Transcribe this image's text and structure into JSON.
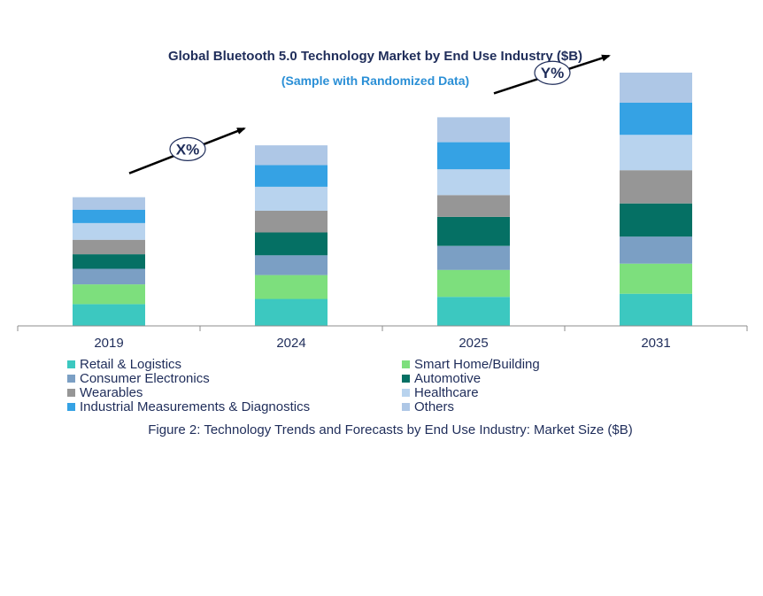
{
  "chart_data": {
    "type": "bar",
    "stacked": true,
    "title": "Global Bluetooth 5.0 Technology Market by End Use Industry ($B)",
    "subtitle": "(Sample with Randomized Data)",
    "caption": "Figure 2: Technology  Trends  and Forecasts by End Use Industry:  Market Size ($B)",
    "xlabel": "",
    "ylabel": "",
    "categories": [
      "2019",
      "2024",
      "2025",
      "2031"
    ],
    "series": [
      {
        "name": "Retail & Logistics",
        "color": "#3cc8c0",
        "values": [
          2.1,
          2.6,
          2.8,
          3.1
        ]
      },
      {
        "name": "Smart Home/Building",
        "color": "#7ddf7d",
        "values": [
          1.9,
          2.3,
          2.6,
          2.9
        ]
      },
      {
        "name": "Consumer Electronics",
        "color": "#7b9fc4",
        "values": [
          1.5,
          1.9,
          2.3,
          2.6
        ]
      },
      {
        "name": "Automotive",
        "color": "#057064",
        "values": [
          1.4,
          2.2,
          2.8,
          3.2
        ]
      },
      {
        "name": "Wearables",
        "color": "#969696",
        "values": [
          1.4,
          2.1,
          2.1,
          3.2
        ]
      },
      {
        "name": "Healthcare",
        "color": "#b8d3ee",
        "values": [
          1.6,
          2.3,
          2.5,
          3.4
        ]
      },
      {
        "name": "Industrial Measurements & Diagnostics",
        "color": "#35a2e4",
        "values": [
          1.3,
          2.1,
          2.6,
          3.1
        ]
      },
      {
        "name": "Others",
        "color": "#aec7e6",
        "values": [
          1.2,
          1.9,
          2.4,
          2.9
        ]
      }
    ],
    "ylim": [
      0,
      25
    ],
    "grid": false,
    "annotations": [
      {
        "text": "X%",
        "from": "2019",
        "to": "2024"
      },
      {
        "text": "Y%",
        "from": "2025",
        "to": "2031"
      }
    ]
  }
}
